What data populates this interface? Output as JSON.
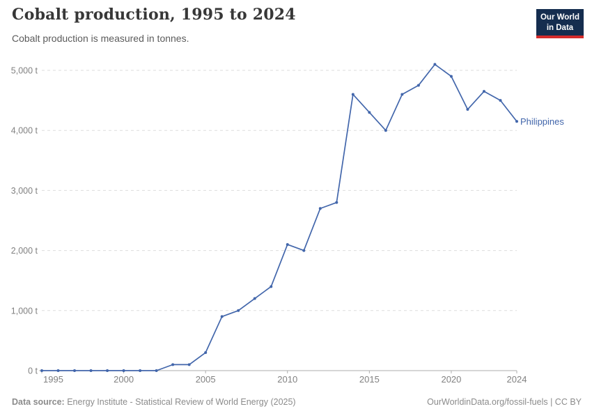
{
  "header": {
    "title": "Cobalt production, 1995 to 2024",
    "subtitle": "Cobalt production is measured in tonnes.",
    "logo": {
      "line1": "Our World",
      "line2": "in Data"
    }
  },
  "footer": {
    "source_label": "Data source:",
    "source_text": " Energy Institute - Statistical Review of World Energy (2025)",
    "right_text": "OurWorldinData.org/fossil-fuels | CC BY"
  },
  "colors": {
    "line": "#4266AB",
    "series_label": "#4266AB",
    "grid": "#dddddd",
    "axis": "#adadad",
    "tick_label": "#818181",
    "logo_bg": "#152D4F",
    "logo_red": "#D42B2B"
  },
  "chart_data": {
    "type": "line",
    "title": "Cobalt production, 1995 to 2024",
    "ylabel": "",
    "xlabel": "",
    "unit": "tonnes",
    "grid": true,
    "legend_position": "end-of-line",
    "xlim": [
      1995,
      2024
    ],
    "ylim": [
      0,
      5000
    ],
    "years": [
      1995,
      1996,
      1997,
      1998,
      1999,
      2000,
      2001,
      2002,
      2003,
      2004,
      2005,
      2006,
      2007,
      2008,
      2009,
      2010,
      2011,
      2012,
      2013,
      2014,
      2015,
      2016,
      2017,
      2018,
      2019,
      2020,
      2021,
      2022,
      2023,
      2024
    ],
    "series": [
      {
        "name": "Philippines",
        "values": [
          0,
          0,
          0,
          0,
          0,
          0,
          0,
          0,
          100,
          100,
          300,
          900,
          1000,
          1200,
          1400,
          2100,
          2000,
          2700,
          2800,
          4600,
          4300,
          4000,
          4600,
          4750,
          5100,
          4900,
          4350,
          4650,
          4500,
          4150
        ]
      }
    ],
    "xticks": [
      1995,
      2000,
      2005,
      2010,
      2015,
      2020,
      2024
    ],
    "yticks": [
      {
        "value": 0,
        "label": "0 t"
      },
      {
        "value": 1000,
        "label": "1,000 t"
      },
      {
        "value": 2000,
        "label": "2,000 t"
      },
      {
        "value": 3000,
        "label": "3,000 t"
      },
      {
        "value": 4000,
        "label": "4,000 t"
      },
      {
        "value": 5000,
        "label": "5,000 t"
      }
    ]
  }
}
